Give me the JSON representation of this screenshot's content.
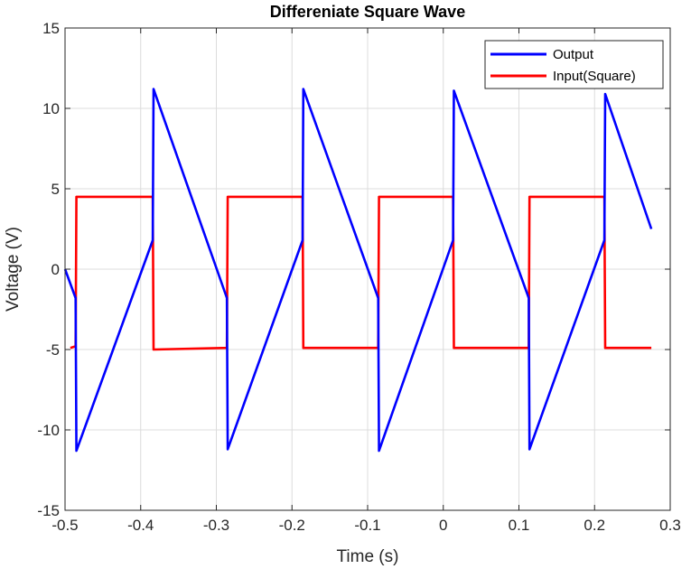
{
  "chart_data": {
    "type": "line",
    "title": "Differeniate Square Wave",
    "xlabel": "Time (s)",
    "ylabel": "Voltage (V)",
    "xlim": [
      -0.5,
      0.3
    ],
    "ylim": [
      -15,
      15
    ],
    "xticks": [
      -0.5,
      -0.4,
      -0.3,
      -0.2,
      -0.1,
      0,
      0.1,
      0.2,
      0.3
    ],
    "xtick_labels": [
      "-0.5",
      "-0.4",
      "-0.3",
      "-0.2",
      "-0.1",
      "0",
      "0.1",
      "0.2",
      "0.3"
    ],
    "yticks": [
      -15,
      -10,
      -5,
      0,
      5,
      10,
      15
    ],
    "ytick_labels": [
      "-15",
      "-10",
      "-5",
      "0",
      "5",
      "10",
      "15"
    ],
    "grid": true,
    "legend_position": "top-right",
    "series": [
      {
        "name": "Output",
        "color": "#0000ff",
        "x": [
          -0.5,
          -0.486,
          -0.485,
          -0.384,
          -0.383,
          -0.286,
          -0.285,
          -0.186,
          -0.185,
          -0.086,
          -0.085,
          0.013,
          0.014,
          0.113,
          0.114,
          0.213,
          0.214,
          0.275
        ],
        "y": [
          0,
          -1.8,
          -11.3,
          1.8,
          11.2,
          -1.8,
          -11.2,
          1.8,
          11.2,
          -1.8,
          -11.3,
          1.8,
          11.1,
          -1.8,
          -11.2,
          1.8,
          10.9,
          2.5
        ]
      },
      {
        "name": "Input(Square)",
        "color": "#ff0000",
        "x": [
          -0.493,
          -0.486,
          -0.485,
          -0.384,
          -0.383,
          -0.286,
          -0.285,
          -0.186,
          -0.185,
          -0.086,
          -0.085,
          0.013,
          0.014,
          0.113,
          0.114,
          0.213,
          0.214,
          0.275
        ],
        "y": [
          -4.9,
          -4.8,
          4.5,
          4.5,
          -5.0,
          -4.9,
          4.5,
          4.5,
          -4.9,
          -4.9,
          4.5,
          4.5,
          -4.9,
          -4.9,
          4.5,
          4.5,
          -4.9,
          -4.9
        ]
      }
    ]
  }
}
